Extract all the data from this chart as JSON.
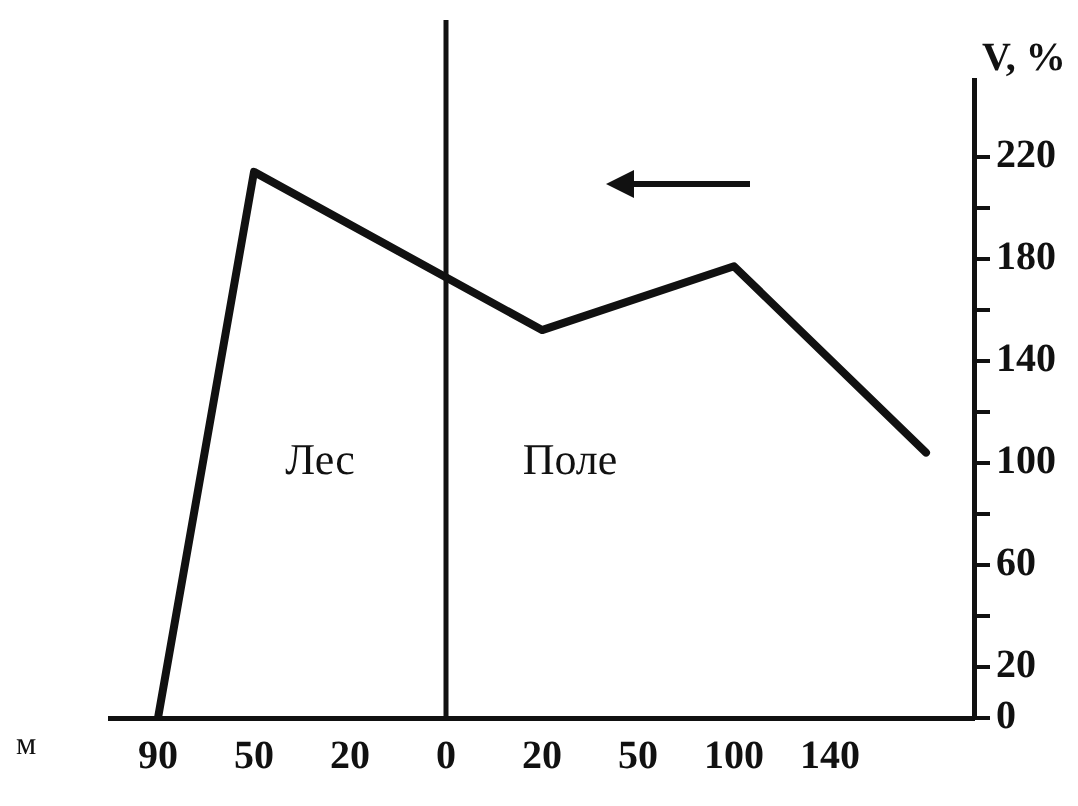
{
  "chart_data": {
    "type": "line",
    "xlabel": "м",
    "ylabel": "V, %",
    "categories": [
      "90",
      "50",
      "20",
      "0",
      "20",
      "50",
      "100",
      "140",
      null
    ],
    "series": [
      {
        "color": "#111111",
        "values": [
          0,
          214,
          null,
          null,
          152,
          null,
          177,
          null,
          104
        ]
      }
    ],
    "ylim": [
      0,
      250
    ],
    "yticks": [
      0,
      20,
      {
        "value": 40,
        "label": null
      },
      60,
      {
        "value": 80,
        "label": null
      },
      100,
      {
        "value": 120,
        "label": null
      },
      140,
      {
        "value": 160,
        "label": null
      },
      180,
      {
        "value": 200,
        "label": null
      },
      220
    ],
    "ref_lines": [
      {
        "axis": "x",
        "value": "0",
        "color": "#111111"
      }
    ],
    "annotations": [
      "Лес",
      "Поле"
    ],
    "grid": false,
    "legend": false,
    "marker": "none",
    "line_style": "solid"
  }
}
